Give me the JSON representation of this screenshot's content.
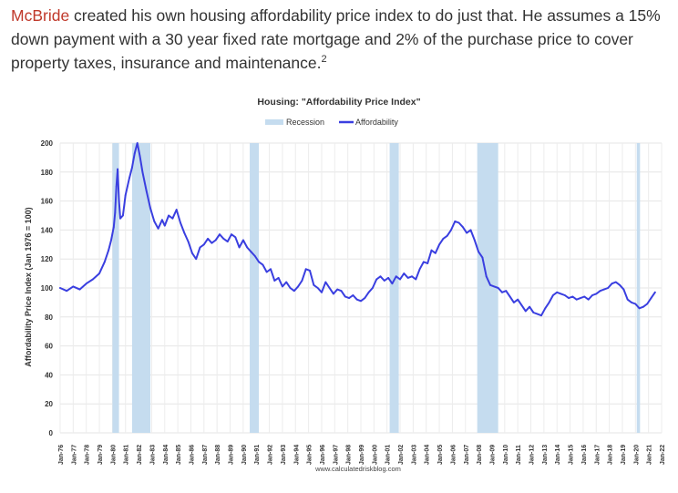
{
  "intro": {
    "link_text": "McBride",
    "text": " created his own housing affordability price index to do just that. He assumes a 15% down payment with a 30 year fixed rate mortgage and 2% of the purchase price to cover property taxes, insurance and maintenance.",
    "footnote": "2"
  },
  "chart_data": {
    "type": "line",
    "title": "Housing: \"Affordability Price Index\"",
    "ylabel": "Affordability Price Index (Jan 1976 = 100)",
    "xlabel": "",
    "source": "www.calculatedriskblog.com",
    "ylim": [
      0,
      200
    ],
    "xlim": [
      1976.0,
      2022.0
    ],
    "yticks": [
      0,
      20,
      40,
      60,
      80,
      100,
      120,
      140,
      160,
      180,
      200
    ],
    "xticks": [
      "Jan-76",
      "Jan-77",
      "Jan-78",
      "Jan-79",
      "Jan-80",
      "Jan-81",
      "Jan-82",
      "Jan-83",
      "Jan-84",
      "Jan-85",
      "Jan-86",
      "Jan-87",
      "Jan-88",
      "Jan-89",
      "Jan-90",
      "Jan-91",
      "Jan-92",
      "Jan-93",
      "Jan-94",
      "Jan-95",
      "Jan-96",
      "Jan-97",
      "Jan-98",
      "Jan-99",
      "Jan-00",
      "Jan-01",
      "Jan-02",
      "Jan-03",
      "Jan-04",
      "Jan-05",
      "Jan-06",
      "Jan-07",
      "Jan-08",
      "Jan-09",
      "Jan-10",
      "Jan-11",
      "Jan-12",
      "Jan-13",
      "Jan-14",
      "Jan-15",
      "Jan-16",
      "Jan-17",
      "Jan-18",
      "Jan-19",
      "Jan-20",
      "Jan-21",
      "Jan-22"
    ],
    "grid": true,
    "legend_position": "top-center",
    "recessions": [
      [
        1980.0,
        1980.5
      ],
      [
        1981.5,
        1982.9
      ],
      [
        1990.5,
        1991.2
      ],
      [
        2001.2,
        2001.9
      ],
      [
        2007.9,
        2009.5
      ],
      [
        2020.1,
        2020.35
      ]
    ],
    "series": [
      {
        "name": "Recession",
        "kind": "band",
        "color": "#c5dcef"
      },
      {
        "name": "Affordability",
        "kind": "line",
        "color": "#3a3fe0",
        "x": [
          1976.0,
          1976.5,
          1977.0,
          1977.5,
          1978.0,
          1978.5,
          1979.0,
          1979.4,
          1979.7,
          1979.9,
          1980.1,
          1980.2,
          1980.3,
          1980.4,
          1980.5,
          1980.6,
          1980.8,
          1981.0,
          1981.3,
          1981.5,
          1981.7,
          1981.9,
          1982.1,
          1982.3,
          1982.6,
          1982.9,
          1983.2,
          1983.5,
          1983.8,
          1984.0,
          1984.3,
          1984.6,
          1984.9,
          1985.2,
          1985.5,
          1985.8,
          1986.1,
          1986.4,
          1986.7,
          1987.0,
          1987.3,
          1987.6,
          1987.9,
          1988.2,
          1988.5,
          1988.8,
          1989.1,
          1989.4,
          1989.7,
          1990.0,
          1990.3,
          1990.6,
          1990.9,
          1991.2,
          1991.5,
          1991.8,
          1992.1,
          1992.4,
          1992.7,
          1993.0,
          1993.3,
          1993.6,
          1993.9,
          1994.2,
          1994.5,
          1994.8,
          1995.1,
          1995.4,
          1995.7,
          1996.0,
          1996.3,
          1996.6,
          1996.9,
          1997.2,
          1997.5,
          1997.8,
          1998.1,
          1998.4,
          1998.7,
          1999.0,
          1999.3,
          1999.6,
          1999.9,
          2000.2,
          2000.5,
          2000.8,
          2001.1,
          2001.4,
          2001.7,
          2002.0,
          2002.3,
          2002.6,
          2002.9,
          2003.2,
          2003.5,
          2003.8,
          2004.1,
          2004.4,
          2004.7,
          2005.0,
          2005.3,
          2005.6,
          2005.9,
          2006.2,
          2006.5,
          2006.8,
          2007.1,
          2007.4,
          2007.7,
          2008.0,
          2008.3,
          2008.6,
          2008.9,
          2009.2,
          2009.5,
          2009.8,
          2010.1,
          2010.4,
          2010.7,
          2011.0,
          2011.3,
          2011.6,
          2011.9,
          2012.2,
          2012.5,
          2012.8,
          2013.1,
          2013.4,
          2013.7,
          2014.0,
          2014.3,
          2014.6,
          2014.9,
          2015.2,
          2015.5,
          2015.8,
          2016.1,
          2016.4,
          2016.7,
          2017.0,
          2017.3,
          2017.6,
          2017.9,
          2018.2,
          2018.5,
          2018.8,
          2019.1,
          2019.4,
          2019.7,
          2020.0,
          2020.3,
          2020.6,
          2020.9,
          2021.2,
          2021.5
        ],
        "y": [
          100,
          98,
          101,
          99,
          103,
          106,
          110,
          118,
          126,
          133,
          142,
          152,
          170,
          182,
          160,
          148,
          150,
          164,
          176,
          183,
          193,
          200,
          191,
          180,
          167,
          155,
          146,
          141,
          147,
          143,
          150,
          148,
          154,
          145,
          138,
          132,
          124,
          120,
          128,
          130,
          134,
          131,
          133,
          137,
          134,
          132,
          137,
          135,
          128,
          133,
          128,
          125,
          122,
          118,
          116,
          111,
          113,
          105,
          107,
          101,
          104,
          100,
          98,
          101,
          105,
          113,
          112,
          102,
          100,
          97,
          104,
          100,
          96,
          99,
          98,
          94,
          93,
          95,
          92,
          91,
          93,
          97,
          100,
          106,
          108,
          105,
          107,
          103,
          108,
          106,
          110,
          107,
          108,
          106,
          113,
          118,
          117,
          126,
          124,
          130,
          134,
          136,
          140,
          146,
          145,
          142,
          138,
          140,
          133,
          125,
          121,
          108,
          102,
          101,
          100,
          97,
          98,
          94,
          90,
          92,
          88,
          84,
          87,
          83,
          82,
          81,
          86,
          90,
          95,
          97,
          96,
          95,
          93,
          94,
          92,
          93,
          94,
          92,
          95,
          96,
          98,
          99,
          100,
          103,
          104,
          102,
          99,
          92,
          90,
          89,
          86,
          87,
          89,
          93,
          97
        ]
      }
    ]
  }
}
